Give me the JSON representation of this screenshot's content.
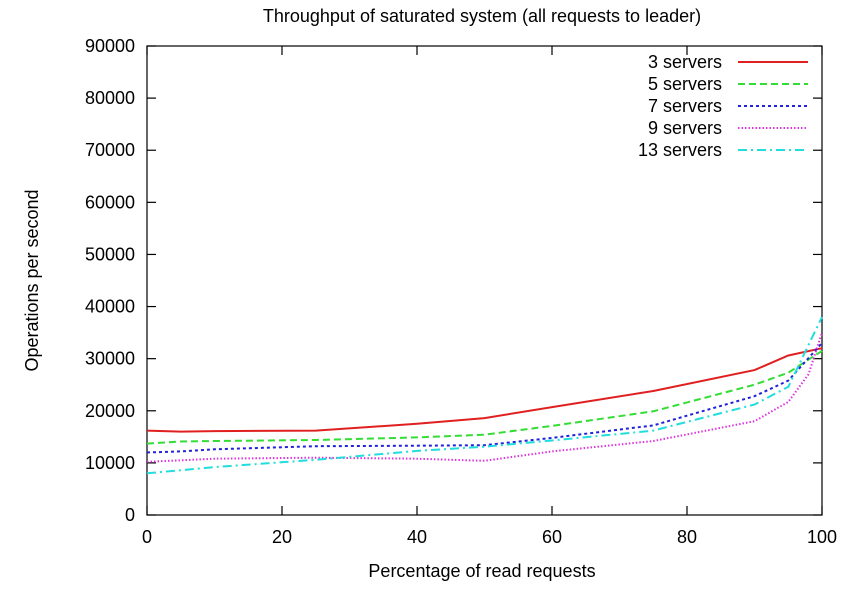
{
  "chart_data": {
    "type": "line",
    "title": "Throughput of saturated system (all requests to leader)",
    "xlabel": "Percentage of read requests",
    "ylabel": "Operations per second",
    "xlim": [
      0,
      100
    ],
    "ylim": [
      0,
      90000
    ],
    "xticks": [
      0,
      20,
      40,
      60,
      80,
      100
    ],
    "yticks": [
      0,
      10000,
      20000,
      30000,
      40000,
      50000,
      60000,
      70000,
      80000,
      90000
    ],
    "grid": false,
    "legend_position": "top-right",
    "series": [
      {
        "name": "3 servers",
        "color": "#e02020",
        "dash": "solid",
        "x": [
          0,
          5,
          10,
          25,
          40,
          50,
          60,
          75,
          90,
          95,
          100
        ],
        "y": [
          16200,
          16000,
          16100,
          16200,
          17500,
          18600,
          20700,
          23800,
          27800,
          30600,
          32000
        ]
      },
      {
        "name": "5 servers",
        "color": "#33dd33",
        "dash": "dashed",
        "x": [
          0,
          5,
          10,
          25,
          40,
          50,
          60,
          75,
          90,
          95,
          100
        ],
        "y": [
          13700,
          14100,
          14200,
          14400,
          14900,
          15400,
          17100,
          19900,
          25000,
          27300,
          31500
        ]
      },
      {
        "name": "7 servers",
        "color": "#2222dd",
        "dash": "dotted",
        "x": [
          0,
          5,
          10,
          25,
          40,
          50,
          60,
          75,
          90,
          95,
          100
        ],
        "y": [
          12000,
          12200,
          12600,
          13200,
          13300,
          13400,
          14800,
          17200,
          22800,
          25800,
          33000
        ]
      },
      {
        "name": "9 servers",
        "color": "#dd33dd",
        "dash": "fine-dotted",
        "x": [
          0,
          5,
          10,
          25,
          40,
          50,
          60,
          75,
          90,
          95,
          98,
          100
        ],
        "y": [
          10200,
          10500,
          10800,
          11000,
          10800,
          10400,
          12200,
          14200,
          18000,
          21700,
          27000,
          35000
        ]
      },
      {
        "name": "13 servers",
        "color": "#22dddd",
        "dash": "dash-dot",
        "x": [
          0,
          5,
          10,
          25,
          40,
          50,
          60,
          75,
          90,
          95,
          100
        ],
        "y": [
          8000,
          8600,
          9200,
          10600,
          12300,
          13100,
          14300,
          16200,
          21200,
          24600,
          38000
        ]
      }
    ]
  }
}
